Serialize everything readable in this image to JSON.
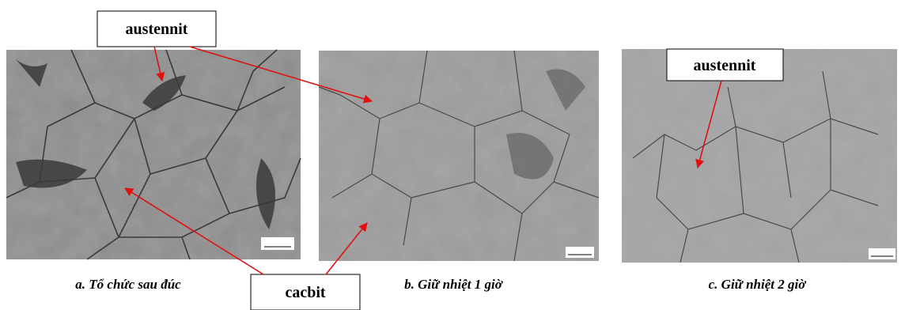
{
  "panels": [
    {
      "caption": "a. Tổ chức sau đúc"
    },
    {
      "caption": "b. Giữ nhiệt 1 giờ"
    },
    {
      "caption": "c. Giữ nhiệt 2 giờ"
    }
  ],
  "annotations": [
    {
      "text": "austennit"
    },
    {
      "text": "austennit"
    },
    {
      "text": "cacbit"
    }
  ]
}
